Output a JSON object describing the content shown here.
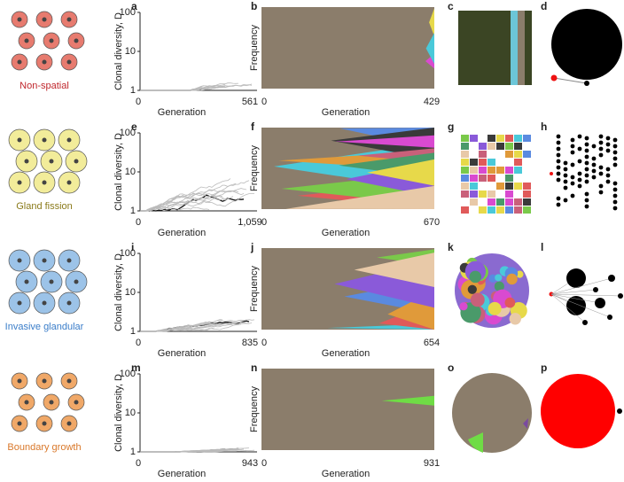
{
  "rows": [
    {
      "label": "Non-spatial",
      "label_color": "#c0272d",
      "cell_color": "#e77b6f",
      "letters": [
        "a",
        "b",
        "c",
        "d"
      ],
      "diversity": {
        "ylabel": "Clonal diversity, D",
        "yticks": [
          "1",
          "10",
          "100"
        ],
        "xticks": [
          "0",
          "561"
        ],
        "xlabel": "Generation"
      },
      "frequency": {
        "ylabel": "Frequency",
        "xticks": [
          "0",
          "429"
        ],
        "xlabel": "Generation"
      }
    },
    {
      "label": "Gland fission",
      "label_color": "#8a7a1a",
      "cell_color": "#f2ec9a",
      "letters": [
        "e",
        "f",
        "g",
        "h"
      ],
      "diversity": {
        "ylabel": "Clonal diversity, D",
        "yticks": [
          "1",
          "10",
          "100"
        ],
        "xticks": [
          "0",
          "1,059"
        ],
        "xlabel": "Generation"
      },
      "frequency": {
        "ylabel": "Frequency",
        "xticks": [
          "0",
          "670"
        ],
        "xlabel": "Generation"
      }
    },
    {
      "label": "Invasive glandular",
      "label_color": "#3a7dc9",
      "cell_color": "#9cc3e8",
      "letters": [
        "i",
        "j",
        "k",
        "l"
      ],
      "diversity": {
        "ylabel": "Clonal diversity, D",
        "yticks": [
          "1",
          "10",
          "100"
        ],
        "xticks": [
          "0",
          "835"
        ],
        "xlabel": "Generation"
      },
      "frequency": {
        "ylabel": "Frequency",
        "xticks": [
          "0",
          "654"
        ],
        "xlabel": "Generation"
      }
    },
    {
      "label": "Boundary growth",
      "label_color": "#d9782a",
      "cell_color": "#f0a868",
      "letters": [
        "m",
        "n",
        "o",
        "p"
      ],
      "diversity": {
        "ylabel": "Clonal diversity, D",
        "yticks": [
          "1",
          "10",
          "100"
        ],
        "xticks": [
          "0",
          "943"
        ],
        "xlabel": "Generation"
      },
      "frequency": {
        "ylabel": "Frequency",
        "xticks": [
          "0",
          "931"
        ],
        "xlabel": "Generation"
      }
    }
  ]
}
